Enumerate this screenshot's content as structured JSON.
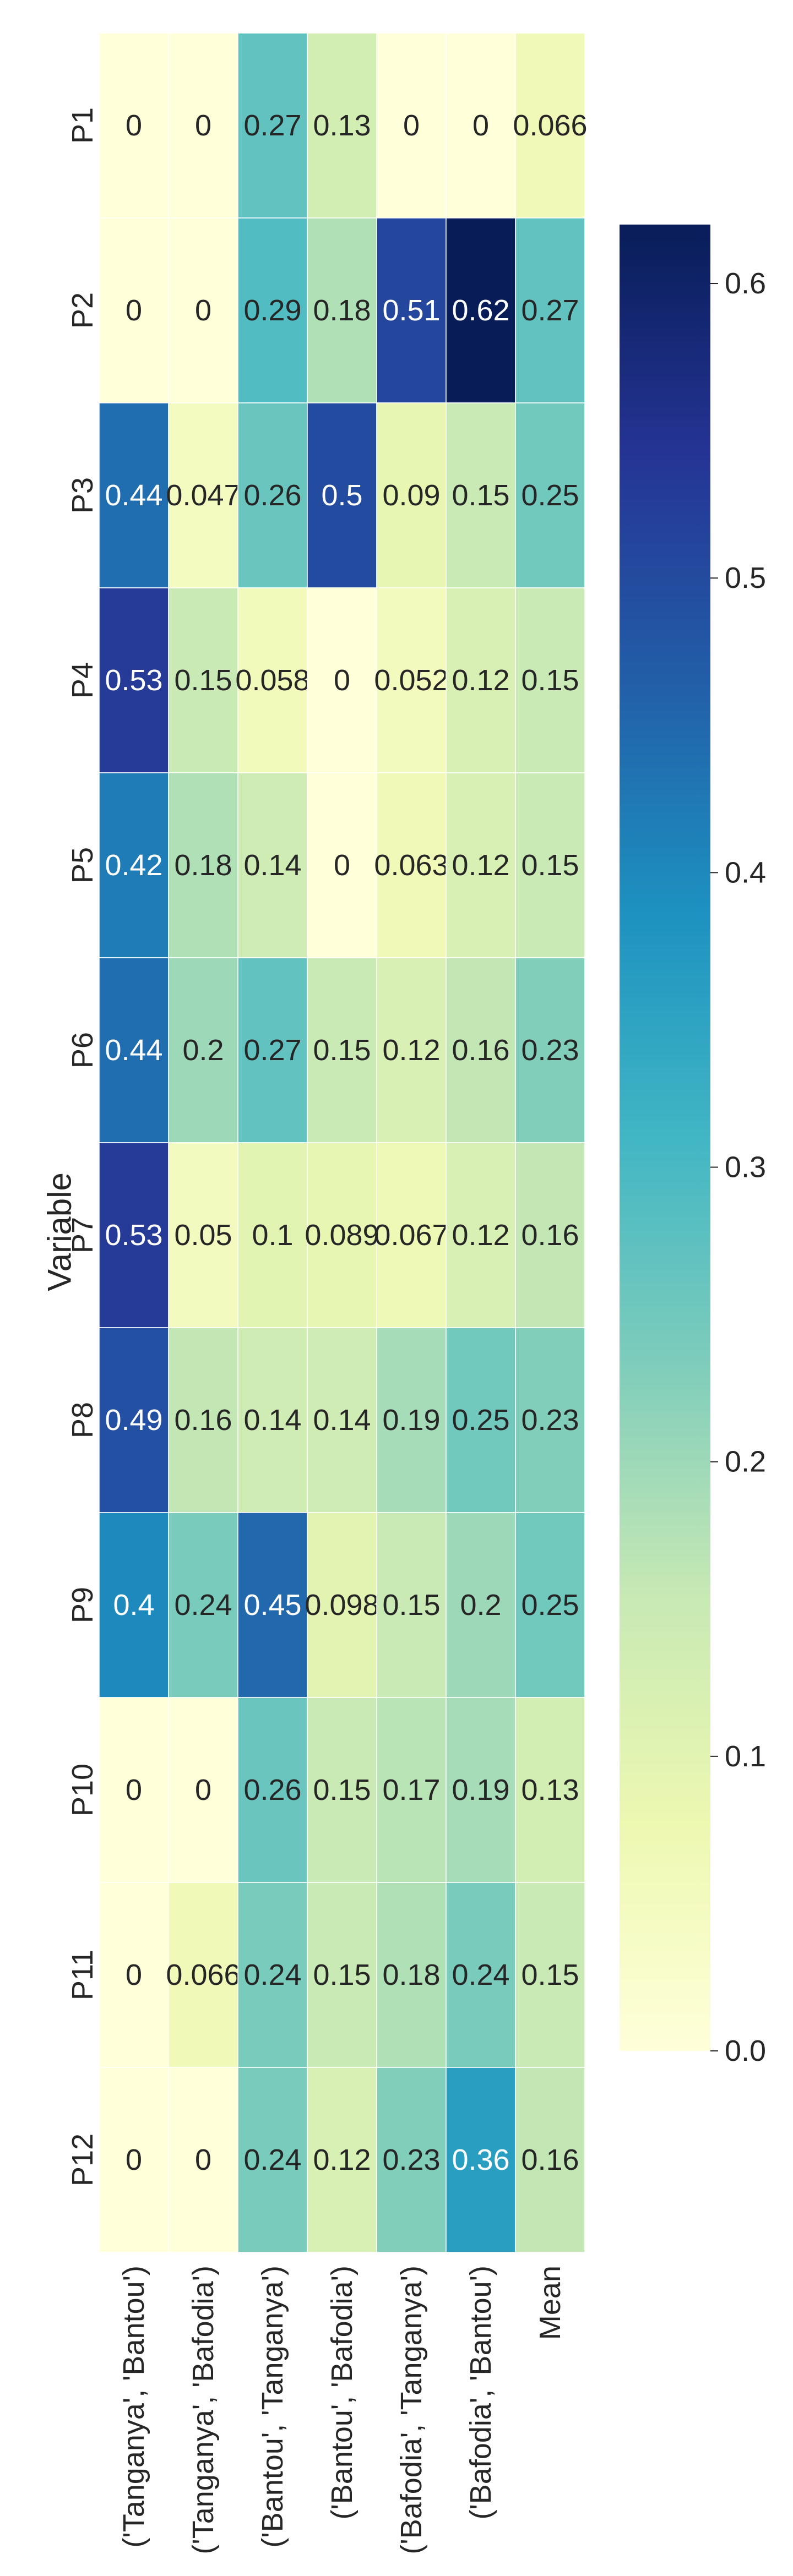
{
  "chart_data": {
    "type": "heatmap",
    "title": "",
    "xlabel": "",
    "ylabel": "Variable",
    "colormap": "YlGnBu",
    "vmin": 0.0,
    "vmax": 0.62,
    "columns": [
      "('Tanganya', 'Bantou')",
      "('Tanganya', 'Bafodia')",
      "('Bantou', 'Tanganya')",
      "('Bantou', 'Bafodia')",
      "('Bafodia', 'Tanganya')",
      "('Bafodia', 'Bantou')",
      "Mean"
    ],
    "rows": [
      "P1",
      "P2",
      "P3",
      "P4",
      "P5",
      "P6",
      "P7",
      "P8",
      "P9",
      "P10",
      "P11",
      "P12"
    ],
    "values": [
      [
        0,
        0,
        0.27,
        0.13,
        0,
        0,
        0.066
      ],
      [
        0,
        0,
        0.29,
        0.18,
        0.51,
        0.62,
        0.27
      ],
      [
        0.44,
        0.047,
        0.26,
        0.5,
        0.09,
        0.15,
        0.25
      ],
      [
        0.53,
        0.15,
        0.058,
        0,
        0.052,
        0.12,
        0.15
      ],
      [
        0.42,
        0.18,
        0.14,
        0,
        0.063,
        0.12,
        0.15
      ],
      [
        0.44,
        0.2,
        0.27,
        0.15,
        0.12,
        0.16,
        0.23
      ],
      [
        0.53,
        0.05,
        0.1,
        0.089,
        0.067,
        0.12,
        0.16
      ],
      [
        0.49,
        0.16,
        0.14,
        0.14,
        0.19,
        0.25,
        0.23
      ],
      [
        0.4,
        0.24,
        0.45,
        0.098,
        0.15,
        0.2,
        0.25
      ],
      [
        0,
        0,
        0.26,
        0.15,
        0.17,
        0.19,
        0.13
      ],
      [
        0,
        0.066,
        0.24,
        0.15,
        0.18,
        0.24,
        0.15
      ],
      [
        0,
        0,
        0.24,
        0.12,
        0.23,
        0.36,
        0.16
      ]
    ],
    "colorbar_ticks": [
      "0.0",
      "0.1",
      "0.2",
      "0.3",
      "0.4",
      "0.5",
      "0.6"
    ]
  }
}
